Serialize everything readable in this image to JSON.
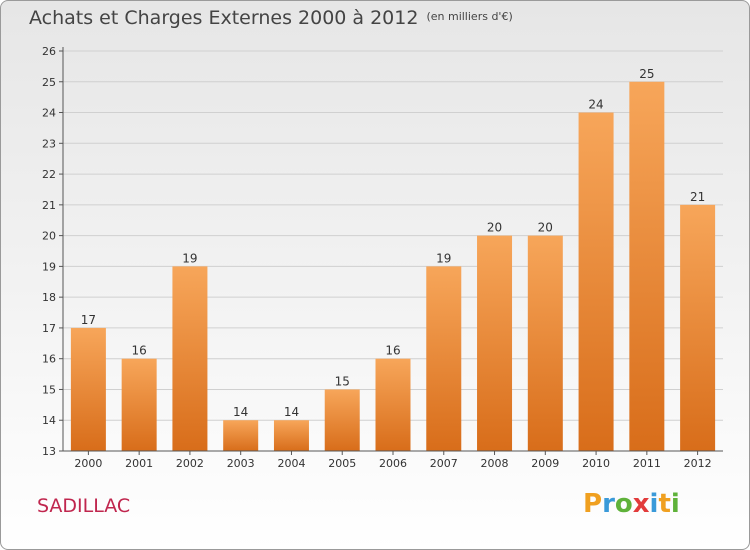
{
  "header": {
    "title": "Achats et Charges Externes 2000 à 2012",
    "unit": "(en milliers d'€)"
  },
  "footer": {
    "commune": "SADILLAC",
    "brand_letters": [
      "P",
      "r",
      "o",
      "x",
      "i",
      "t",
      "i"
    ],
    "brand_colors": [
      "#f0a020",
      "#3a9ad9",
      "#5fb23a",
      "#e23b3b",
      "#3a9ad9",
      "#f0a020",
      "#5fb23a"
    ]
  },
  "colors": {
    "bar_top": "#f7a65a",
    "bar_bottom": "#d86d1a",
    "axis": "#555555",
    "grid": "#d0d0d0",
    "title": "#444444",
    "commune": "#c0264e"
  },
  "chart_data": {
    "type": "bar",
    "title": "Achats et Charges Externes 2000 à 2012",
    "subtitle": "(en milliers d'€)",
    "xlabel": "",
    "ylabel": "",
    "categories": [
      "2000",
      "2001",
      "2002",
      "2003",
      "2004",
      "2005",
      "2006",
      "2007",
      "2008",
      "2009",
      "2010",
      "2011",
      "2012"
    ],
    "values": [
      17,
      16,
      19,
      14,
      14,
      15,
      16,
      19,
      20,
      20,
      24,
      25,
      21
    ],
    "ylim": [
      13,
      26
    ],
    "yticks": [
      13,
      14,
      15,
      16,
      17,
      18,
      19,
      20,
      21,
      22,
      23,
      24,
      25,
      26
    ],
    "grid": true,
    "legend": "none"
  }
}
